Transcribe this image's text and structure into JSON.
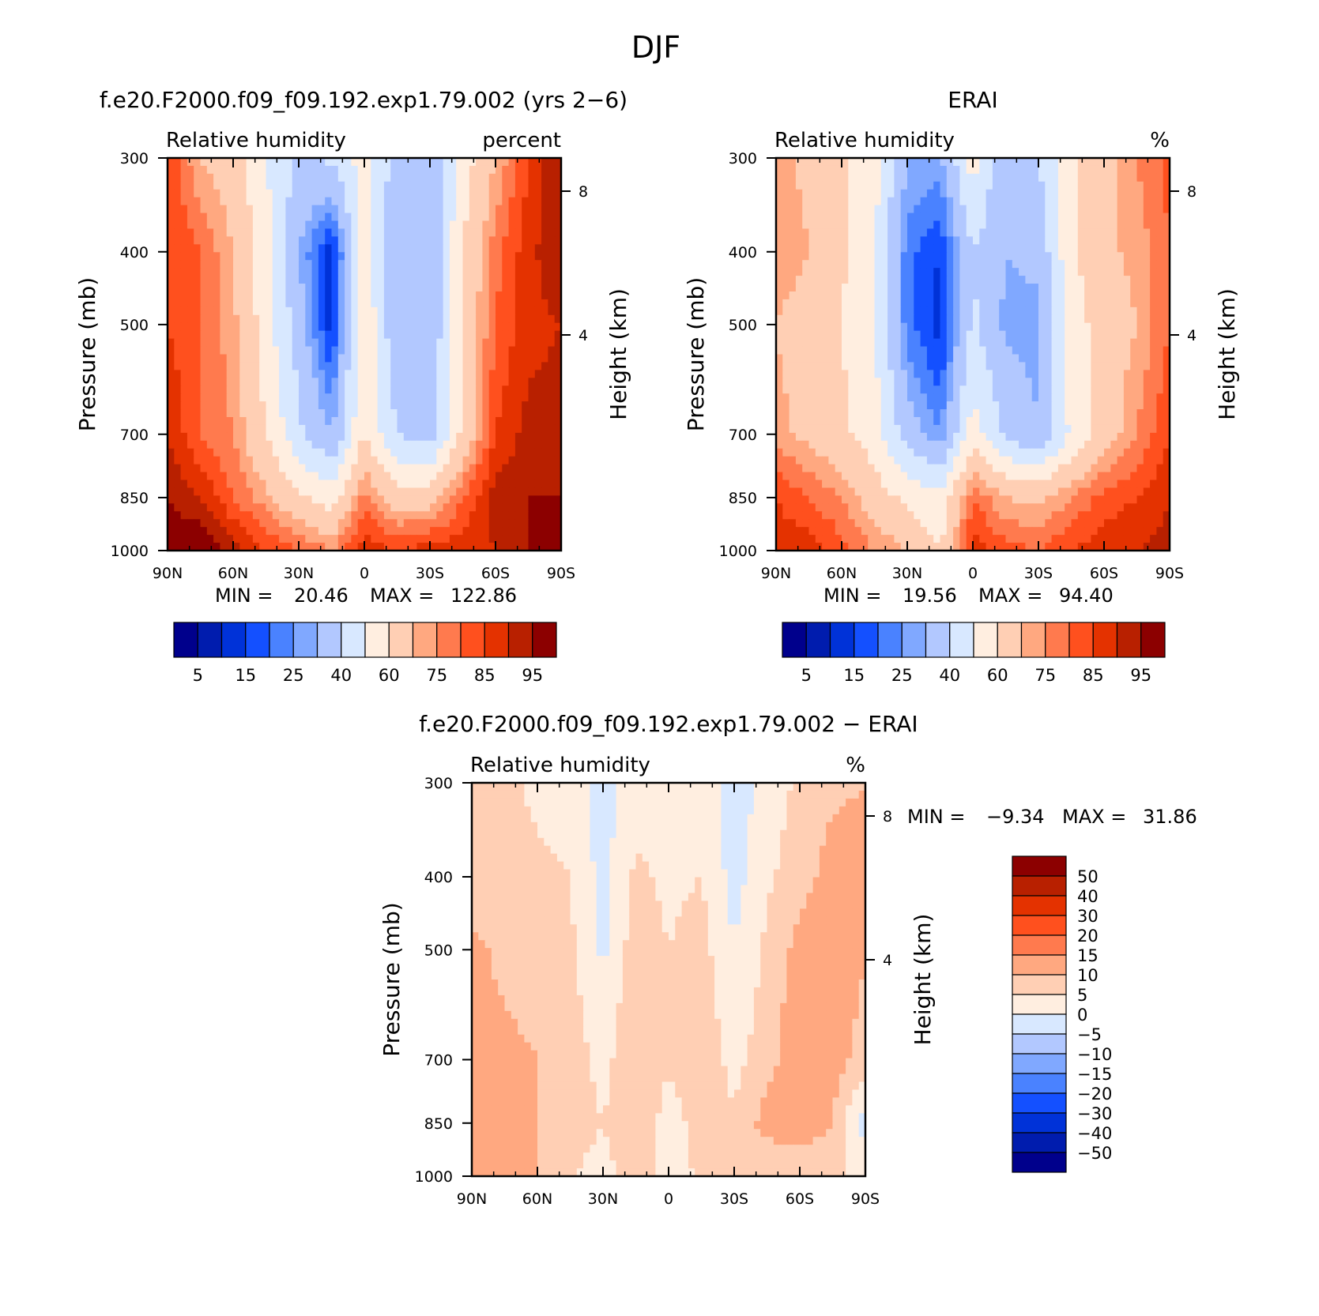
{
  "page": {
    "title": "DJF"
  },
  "colors": {
    "abs_levels": [
      "#00008c",
      "#001cae",
      "#0032d8",
      "#1450ff",
      "#4a82ff",
      "#80a8ff",
      "#b2c8ff",
      "#d8e8ff",
      "#ffeee0",
      "#ffcfb4",
      "#ffa880",
      "#ff7a4e",
      "#ff501e",
      "#e43200",
      "#b82000",
      "#8c0000"
    ],
    "diff_levels": [
      "#00008c",
      "#001cae",
      "#0032d8",
      "#1450ff",
      "#4a82ff",
      "#80a8ff",
      "#b2c8ff",
      "#d8e8ff",
      "#ffeee0",
      "#ffcfb4",
      "#ffa880",
      "#ff7a4e",
      "#ff501e",
      "#e43200",
      "#b82000",
      "#8c0000"
    ]
  },
  "chart_data": [
    {
      "type": "heatmap",
      "id": "model",
      "title": "f.e20.F2000.f09_f09.192.exp1.79.002 (yrs 2−6)",
      "subtitle_left": "Relative humidity",
      "subtitle_right": "percent",
      "xlabel": "",
      "ylabel": "Pressure (mb)",
      "y2label": "Height (km)",
      "x_ticks": [
        "90N",
        "60N",
        "30N",
        "0",
        "30S",
        "60S",
        "90S"
      ],
      "x_values": [
        90,
        60,
        30,
        0,
        -30,
        -60,
        -90
      ],
      "y_ticks": [
        "300",
        "400",
        "500",
        "700",
        "850",
        "1000"
      ],
      "y_values": [
        300,
        400,
        500,
        700,
        850,
        1000
      ],
      "y2_ticks": [
        "8",
        "4"
      ],
      "stats": {
        "min_label": "MIN =",
        "min": "20.46",
        "max_label": "MAX =",
        "max": "122.86"
      },
      "colorbar": {
        "labels": [
          "5",
          "15",
          "25",
          "40",
          "60",
          "75",
          "85",
          "95"
        ]
      },
      "field": {
        "lats": [
          90,
          75,
          60,
          45,
          30,
          15,
          0,
          -15,
          -30,
          -45,
          -60,
          -75,
          -90
        ],
        "levels": [
          300,
          400,
          500,
          700,
          850,
          1000
        ],
        "values": [
          [
            85,
            70,
            65,
            50,
            38,
            42,
            55,
            35,
            32,
            55,
            70,
            85,
            95
          ],
          [
            85,
            80,
            70,
            55,
            30,
            12,
            55,
            30,
            30,
            60,
            78,
            88,
            95
          ],
          [
            85,
            80,
            72,
            55,
            35,
            12,
            60,
            30,
            30,
            62,
            80,
            88,
            90
          ],
          [
            90,
            80,
            75,
            60,
            42,
            30,
            60,
            40,
            35,
            62,
            85,
            92,
            92
          ],
          [
            95,
            90,
            80,
            72,
            62,
            55,
            78,
            65,
            65,
            80,
            92,
            95,
            95
          ],
          [
            100,
            100,
            92,
            85,
            80,
            75,
            88,
            85,
            88,
            88,
            90,
            95,
            95
          ]
        ]
      }
    },
    {
      "type": "heatmap",
      "id": "obs",
      "title": "ERAI",
      "subtitle_left": "Relative humidity",
      "subtitle_right": "%",
      "xlabel": "",
      "ylabel": "Pressure (mb)",
      "y2label": "Height (km)",
      "x_ticks": [
        "90N",
        "60N",
        "30N",
        "0",
        "30S",
        "60S",
        "90S"
      ],
      "x_values": [
        90,
        60,
        30,
        0,
        -30,
        -60,
        -90
      ],
      "y_ticks": [
        "300",
        "400",
        "500",
        "700",
        "850",
        "1000"
      ],
      "y_values": [
        300,
        400,
        500,
        700,
        850,
        1000
      ],
      "y2_ticks": [
        "8",
        "4"
      ],
      "stats": {
        "min_label": "MIN =",
        "min": "19.56",
        "max_label": "MAX =",
        "max": "94.40"
      },
      "colorbar": {
        "labels": [
          "5",
          "15",
          "25",
          "40",
          "60",
          "75",
          "85",
          "95"
        ]
      },
      "field": {
        "lats": [
          90,
          75,
          60,
          45,
          30,
          15,
          0,
          -15,
          -30,
          -45,
          -60,
          -75,
          -90
        ],
        "levels": [
          300,
          400,
          500,
          700,
          850,
          1000
        ],
        "values": [
          [
            72,
            68,
            62,
            55,
            30,
            28,
            55,
            30,
            40,
            58,
            65,
            75,
            82
          ],
          [
            75,
            70,
            62,
            50,
            22,
            15,
            40,
            30,
            32,
            58,
            68,
            72,
            80
          ],
          [
            70,
            65,
            60,
            50,
            22,
            12,
            42,
            28,
            28,
            55,
            65,
            70,
            80
          ],
          [
            72,
            68,
            62,
            55,
            35,
            25,
            55,
            38,
            30,
            52,
            65,
            75,
            85
          ],
          [
            85,
            80,
            75,
            65,
            58,
            52,
            80,
            70,
            68,
            75,
            82,
            85,
            90
          ],
          [
            88,
            88,
            82,
            75,
            70,
            60,
            88,
            82,
            80,
            85,
            88,
            90,
            92
          ]
        ]
      }
    },
    {
      "type": "heatmap",
      "id": "diff",
      "title": "f.e20.F2000.f09_f09.192.exp1.79.002 − ERAI",
      "subtitle_left": "Relative humidity",
      "subtitle_right": "%",
      "xlabel": "",
      "ylabel": "Pressure (mb)",
      "y2label": "Height (km)",
      "x_ticks": [
        "90N",
        "60N",
        "30N",
        "0",
        "30S",
        "60S",
        "90S"
      ],
      "x_values": [
        90,
        60,
        30,
        0,
        -30,
        -60,
        -90
      ],
      "y_ticks": [
        "300",
        "400",
        "500",
        "700",
        "850",
        "1000"
      ],
      "y_values": [
        300,
        400,
        500,
        700,
        850,
        1000
      ],
      "y2_ticks": [
        "8",
        "4"
      ],
      "stats": {
        "min_label": "MIN =",
        "min": "−9.34",
        "max_label": "MAX =",
        "max": "31.86"
      },
      "colorbar": {
        "labels": [
          "50",
          "40",
          "30",
          "20",
          "15",
          "10",
          "5",
          "0",
          "−5",
          "−10",
          "−15",
          "−20",
          "−30",
          "−40",
          "−50"
        ]
      },
      "field": {
        "lats": [
          90,
          75,
          60,
          45,
          30,
          15,
          0,
          -15,
          -30,
          -45,
          -60,
          -75,
          -90
        ],
        "levels": [
          300,
          400,
          500,
          700,
          850,
          1000
        ],
        "values": [
          [
            7,
            6,
            4,
            3,
            -2,
            3,
            2,
            3,
            -3,
            2,
            6,
            9,
            10
          ],
          [
            8,
            7,
            6,
            5,
            -2,
            6,
            4,
            5,
            -2,
            4,
            8,
            12,
            12
          ],
          [
            11,
            9,
            8,
            6,
            -1,
            8,
            5,
            7,
            0,
            6,
            12,
            15,
            10
          ],
          [
            12,
            11,
            10,
            8,
            3,
            10,
            6,
            9,
            3,
            8,
            14,
            12,
            8
          ],
          [
            12,
            11,
            10,
            8,
            5,
            10,
            2,
            8,
            6,
            12,
            14,
            10,
            -3
          ],
          [
            14,
            12,
            10,
            5,
            3,
            8,
            2,
            6,
            7,
            5,
            6,
            5,
            5
          ]
        ]
      }
    }
  ]
}
